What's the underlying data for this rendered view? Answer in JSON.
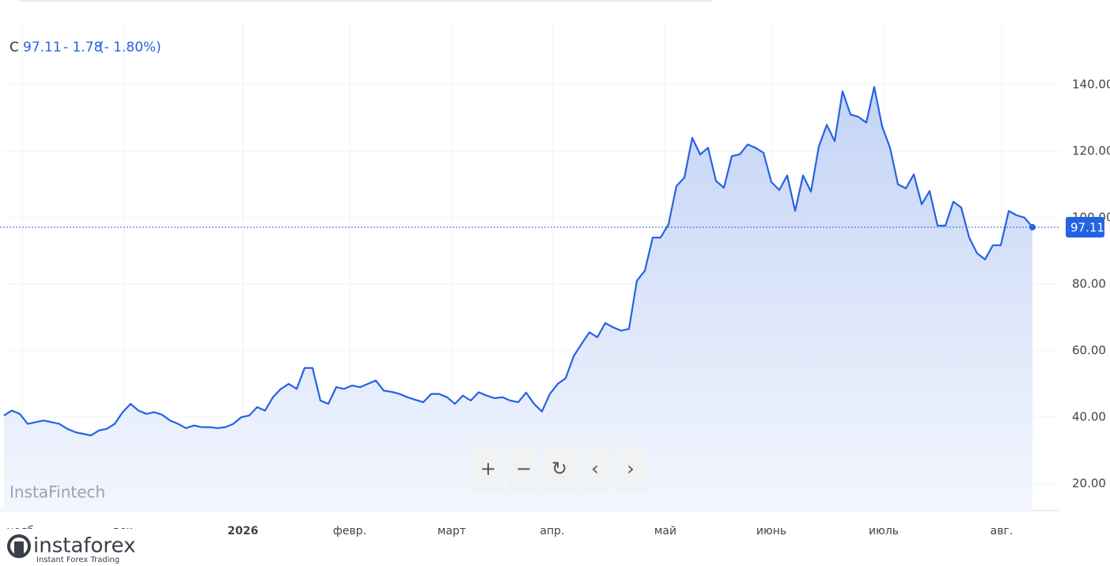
{
  "chart_data": {
    "type": "area",
    "header": {
      "symbol": "C",
      "price": "97.11",
      "change": "- 1.78",
      "change_pct": "(- 1.80%)"
    },
    "watermark": "InstaFintech",
    "logo": {
      "name": "instaforex",
      "tagline": "Instant Forex Trading"
    },
    "color": "#2563e3",
    "values": [
      40.5,
      42,
      41,
      38,
      38.5,
      39,
      38.5,
      38,
      36.5,
      35.5,
      35,
      34.5,
      36,
      36.5,
      38,
      41.5,
      44,
      42,
      41,
      41.5,
      40.7,
      39,
      38,
      36.7,
      37.5,
      37,
      37,
      36.7,
      37,
      38,
      40,
      40.5,
      43,
      42,
      46,
      48.5,
      50,
      48.5,
      54.8,
      54.8,
      45,
      44,
      49,
      48.5,
      49.5,
      49,
      50,
      51,
      48,
      47.6,
      47,
      46,
      45.2,
      44.5,
      47,
      47,
      46,
      44,
      46.5,
      45,
      47.5,
      46.5,
      45.7,
      46,
      45,
      44.5,
      47.4,
      44,
      41.7,
      47,
      50,
      51.7,
      58.3,
      62,
      65.5,
      64,
      68.3,
      67,
      66,
      66.5,
      81,
      84,
      94,
      94,
      98,
      109.5,
      112,
      124,
      119,
      121,
      111,
      109,
      118.5,
      119,
      122,
      121,
      119.5,
      110.7,
      108.3,
      112.7,
      102,
      112.7,
      107.8,
      121.4,
      127.9,
      123,
      138,
      131,
      130.3,
      128.6,
      139.3,
      127.4,
      121,
      110,
      108.8,
      113,
      104,
      108,
      97.6,
      97.6,
      104.8,
      103,
      94,
      89.3,
      87.4,
      91.7,
      91.7,
      102,
      100.7,
      100,
      97.11
    ],
    "xlim": [
      0,
      133.5
    ],
    "xticks": [
      {
        "value": 2.3,
        "label": "нояб."
      },
      {
        "value": 15.2,
        "label": "дек."
      },
      {
        "value": 30.2,
        "label": "2026"
      },
      {
        "value": 43.7,
        "label": "февр."
      },
      {
        "value": 56.6,
        "label": "март"
      },
      {
        "value": 69.3,
        "label": "апр."
      },
      {
        "value": 83.6,
        "label": "май"
      },
      {
        "value": 97,
        "label": "июнь"
      },
      {
        "value": 111.2,
        "label": "июль"
      },
      {
        "value": 126.1,
        "label": "авг."
      }
    ],
    "ylim": [
      11.9,
      158.3
    ],
    "yticks": [
      {
        "value": 20,
        "label": "20.00"
      },
      {
        "value": 40,
        "label": "40.00"
      },
      {
        "value": 60,
        "label": "60.00"
      },
      {
        "value": 80,
        "label": "80.00"
      },
      {
        "value": 100,
        "label": "100.00"
      },
      {
        "value": 120,
        "label": "120.00"
      },
      {
        "value": 140,
        "label": "140.00"
      }
    ],
    "grid": true,
    "buttons": [
      "+",
      "−",
      "↻",
      "‹",
      "›"
    ]
  }
}
